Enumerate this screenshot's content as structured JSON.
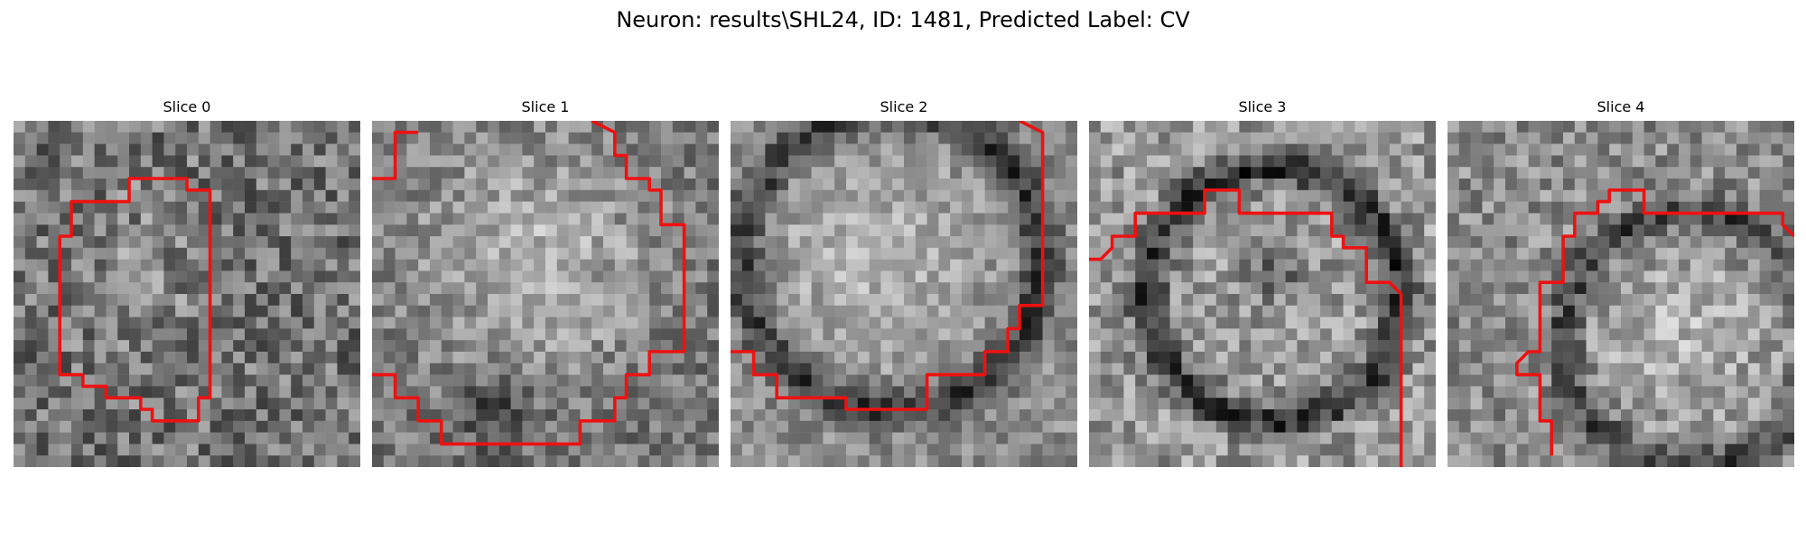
{
  "figure": {
    "title": "Neuron: results\\SHL24, ID: 1481, Predicted Label: CV",
    "contour_color": "#ee1111",
    "slices": [
      {
        "title": "Slice 0",
        "seed": 11,
        "contrast": 1.0
      },
      {
        "title": "Slice 1",
        "seed": 23,
        "contrast": 0.8
      },
      {
        "title": "Slice 2",
        "seed": 37,
        "contrast": 0.7
      },
      {
        "title": "Slice 3",
        "seed": 41,
        "contrast": 0.9
      },
      {
        "title": "Slice 4",
        "seed": 53,
        "contrast": 0.85
      }
    ]
  }
}
